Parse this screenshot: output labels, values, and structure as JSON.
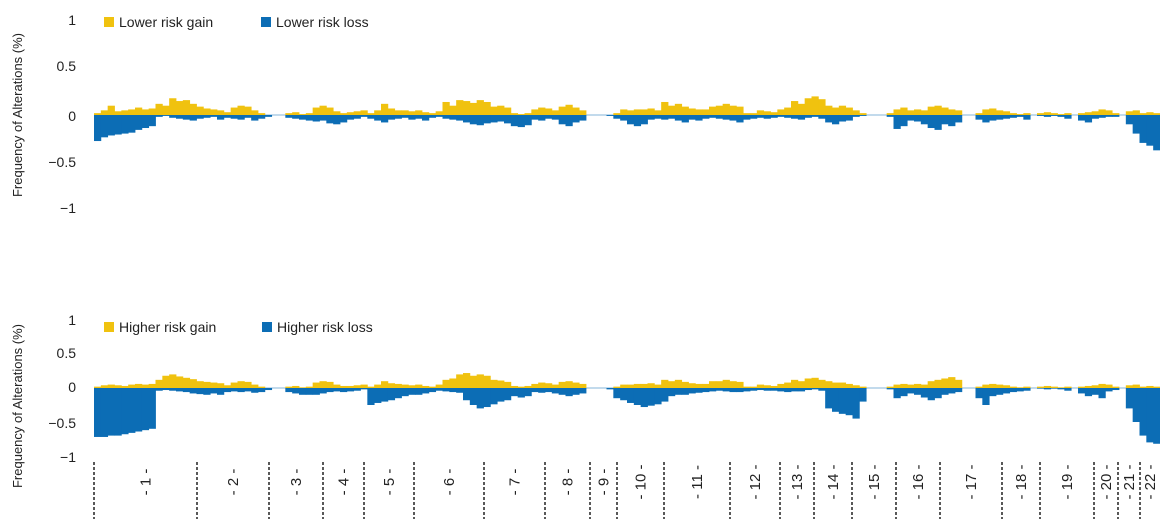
{
  "colors": {
    "gain": "#f0c20f",
    "loss": "#0c6db5",
    "separator": "#222222"
  },
  "chart_data": [
    {
      "type": "area",
      "ylabel": "Frequency of Alterations (%)",
      "ylim": [
        -1,
        1
      ],
      "yticks": [
        1,
        0.5,
        0,
        -0.5,
        -1
      ],
      "ytick_labels": [
        "1",
        "0.5",
        "0",
        "−0.5",
        "−1"
      ],
      "legend": [
        "Lower risk gain",
        "Lower risk loss"
      ],
      "legend_position": "top-left",
      "series": [
        {
          "name": "Lower risk gain",
          "color": "#f0c20f",
          "values": [
            0.02,
            0.05,
            0.1,
            0.04,
            0.05,
            0.06,
            0.08,
            0.06,
            0.07,
            0.12,
            0.1,
            0.18,
            0.15,
            0.16,
            0.12,
            0.09,
            0.07,
            0.06,
            0.05,
            0.03,
            0.08,
            0.1,
            0.09,
            0.05,
            0.02,
            0,
            0,
            0,
            0.02,
            0.03,
            0.01,
            0.02,
            0.08,
            0.1,
            0.08,
            0.04,
            0.02,
            0.03,
            0.04,
            0.05,
            0.02,
            0.05,
            0.12,
            0.07,
            0.05,
            0.05,
            0.04,
            0.05,
            0.03,
            0.02,
            0.04,
            0.14,
            0.1,
            0.16,
            0.15,
            0.13,
            0.16,
            0.14,
            0.09,
            0.1,
            0.08,
            0.02,
            0.01,
            0.02,
            0.06,
            0.08,
            0.07,
            0.05,
            0.09,
            0.11,
            0.08,
            0.05,
            0,
            0,
            0,
            0,
            0.02,
            0.06,
            0.05,
            0.06,
            0.06,
            0.07,
            0.05,
            0.14,
            0.1,
            0.12,
            0.09,
            0.07,
            0.06,
            0.06,
            0.09,
            0.1,
            0.12,
            0.1,
            0.09,
            0.02,
            0.02,
            0.05,
            0.04,
            0.03,
            0.06,
            0.08,
            0.15,
            0.12,
            0.18,
            0.2,
            0.17,
            0.1,
            0.08,
            0.1,
            0.08,
            0.05,
            0.02,
            0,
            0,
            0,
            0.02,
            0.06,
            0.08,
            0.05,
            0.06,
            0.05,
            0.09,
            0.1,
            0.08,
            0.06,
            0.05,
            0,
            0,
            0.02,
            0.06,
            0.07,
            0.05,
            0.04,
            0.02,
            0.01,
            0.02,
            0,
            0.02,
            0.03,
            0.02,
            0.01,
            0.02,
            0,
            0.02,
            0.03,
            0.04,
            0.06,
            0.05,
            0.02,
            0,
            0.04,
            0.05,
            0.02,
            0.03,
            0.02
          ]
        },
        {
          "name": "Lower risk loss",
          "color": "#0c6db5",
          "values": [
            -0.28,
            -0.24,
            -0.22,
            -0.21,
            -0.2,
            -0.19,
            -0.16,
            -0.14,
            -0.12,
            -0.02,
            -0.01,
            -0.03,
            -0.04,
            -0.05,
            -0.06,
            -0.04,
            -0.03,
            -0.02,
            -0.05,
            -0.03,
            -0.04,
            -0.05,
            -0.03,
            -0.06,
            -0.04,
            -0.02,
            0,
            0,
            -0.03,
            -0.04,
            -0.05,
            -0.06,
            -0.07,
            -0.06,
            -0.09,
            -0.1,
            -0.08,
            -0.05,
            -0.04,
            -0.02,
            -0.04,
            -0.06,
            -0.08,
            -0.05,
            -0.04,
            -0.03,
            -0.05,
            -0.04,
            -0.06,
            -0.03,
            -0.02,
            -0.04,
            -0.05,
            -0.06,
            -0.08,
            -0.1,
            -0.11,
            -0.09,
            -0.08,
            -0.07,
            -0.09,
            -0.12,
            -0.13,
            -0.11,
            -0.05,
            -0.06,
            -0.04,
            -0.05,
            -0.1,
            -0.12,
            -0.08,
            -0.06,
            0,
            0,
            0,
            -0.01,
            -0.04,
            -0.06,
            -0.1,
            -0.12,
            -0.1,
            -0.05,
            -0.04,
            -0.05,
            -0.04,
            -0.06,
            -0.08,
            -0.05,
            -0.06,
            -0.04,
            -0.03,
            -0.04,
            -0.05,
            -0.06,
            -0.08,
            -0.05,
            -0.04,
            -0.03,
            -0.04,
            -0.03,
            -0.02,
            -0.03,
            -0.04,
            -0.05,
            -0.03,
            -0.02,
            -0.04,
            -0.08,
            -0.1,
            -0.07,
            -0.06,
            -0.02,
            -0.01,
            0,
            0,
            0,
            -0.02,
            -0.15,
            -0.12,
            -0.06,
            -0.07,
            -0.1,
            -0.14,
            -0.16,
            -0.1,
            -0.12,
            -0.08,
            0,
            0,
            -0.05,
            -0.08,
            -0.06,
            -0.05,
            -0.04,
            -0.03,
            -0.02,
            -0.05,
            0,
            -0.01,
            -0.02,
            -0.01,
            -0.02,
            -0.04,
            0,
            -0.06,
            -0.08,
            -0.04,
            -0.03,
            -0.02,
            -0.02,
            0,
            -0.1,
            -0.2,
            -0.3,
            -0.33,
            -0.38
          ]
        }
      ]
    },
    {
      "type": "area",
      "ylabel": "Frequency of Alterations (%)",
      "ylim": [
        -1,
        1
      ],
      "yticks": [
        1,
        0.5,
        0,
        -0.5,
        -1
      ],
      "ytick_labels": [
        "1",
        "0.5",
        "0",
        "−0.5",
        "−1"
      ],
      "legend": [
        "Higher risk gain",
        "Higher risk loss"
      ],
      "legend_position": "top-left",
      "series": [
        {
          "name": "Higher risk gain",
          "color": "#f0c20f",
          "values": [
            0.02,
            0.04,
            0.05,
            0.04,
            0.03,
            0.05,
            0.06,
            0.05,
            0.06,
            0.12,
            0.18,
            0.2,
            0.17,
            0.15,
            0.13,
            0.1,
            0.09,
            0.08,
            0.07,
            0.04,
            0.08,
            0.1,
            0.09,
            0.05,
            0.02,
            0,
            0,
            0,
            0.02,
            0.03,
            0.01,
            0.02,
            0.08,
            0.1,
            0.09,
            0.05,
            0.03,
            0.03,
            0.04,
            0.05,
            0.02,
            0.05,
            0.1,
            0.07,
            0.06,
            0.05,
            0.04,
            0.05,
            0.03,
            0.02,
            0.05,
            0.12,
            0.14,
            0.2,
            0.22,
            0.18,
            0.2,
            0.18,
            0.12,
            0.11,
            0.09,
            0.03,
            0.02,
            0.03,
            0.06,
            0.08,
            0.07,
            0.05,
            0.09,
            0.1,
            0.08,
            0.06,
            0,
            0,
            0,
            0,
            0.02,
            0.05,
            0.05,
            0.06,
            0.06,
            0.07,
            0.05,
            0.12,
            0.1,
            0.12,
            0.09,
            0.07,
            0.06,
            0.06,
            0.1,
            0.1,
            0.12,
            0.1,
            0.09,
            0.02,
            0.02,
            0.05,
            0.04,
            0.03,
            0.06,
            0.08,
            0.12,
            0.1,
            0.14,
            0.15,
            0.12,
            0.1,
            0.08,
            0.08,
            0.06,
            0.04,
            0.02,
            0,
            0,
            0,
            0.02,
            0.05,
            0.06,
            0.05,
            0.06,
            0.05,
            0.1,
            0.12,
            0.14,
            0.16,
            0.12,
            0,
            0,
            0.02,
            0.05,
            0.06,
            0.05,
            0.04,
            0.02,
            0.01,
            0.02,
            0,
            0.02,
            0.03,
            0.02,
            0.01,
            0.02,
            0,
            0.02,
            0.03,
            0.04,
            0.06,
            0.05,
            0.02,
            0,
            0.04,
            0.05,
            0.02,
            0.03,
            0.02
          ]
        },
        {
          "name": "Higher risk loss",
          "color": "#0c6db5",
          "values": [
            -0.72,
            -0.72,
            -0.7,
            -0.7,
            -0.68,
            -0.66,
            -0.64,
            -0.62,
            -0.6,
            -0.04,
            -0.03,
            -0.04,
            -0.05,
            -0.06,
            -0.08,
            -0.09,
            -0.1,
            -0.08,
            -0.1,
            -0.06,
            -0.05,
            -0.06,
            -0.05,
            -0.07,
            -0.06,
            -0.03,
            0,
            0,
            -0.06,
            -0.08,
            -0.1,
            -0.1,
            -0.1,
            -0.08,
            -0.06,
            -0.05,
            -0.06,
            -0.05,
            -0.04,
            -0.02,
            -0.25,
            -0.22,
            -0.2,
            -0.18,
            -0.15,
            -0.12,
            -0.1,
            -0.1,
            -0.08,
            -0.06,
            -0.04,
            -0.05,
            -0.06,
            -0.07,
            -0.18,
            -0.25,
            -0.3,
            -0.28,
            -0.24,
            -0.2,
            -0.18,
            -0.12,
            -0.14,
            -0.12,
            -0.06,
            -0.07,
            -0.06,
            -0.08,
            -0.1,
            -0.12,
            -0.1,
            -0.08,
            0,
            0,
            0,
            -0.02,
            -0.15,
            -0.18,
            -0.22,
            -0.25,
            -0.28,
            -0.26,
            -0.24,
            -0.2,
            -0.12,
            -0.1,
            -0.1,
            -0.08,
            -0.07,
            -0.06,
            -0.05,
            -0.04,
            -0.05,
            -0.06,
            -0.06,
            -0.05,
            -0.04,
            -0.03,
            -0.04,
            -0.04,
            -0.05,
            -0.06,
            -0.05,
            -0.05,
            -0.03,
            -0.02,
            -0.04,
            -0.3,
            -0.35,
            -0.38,
            -0.4,
            -0.45,
            -0.2,
            0,
            0,
            0,
            -0.02,
            -0.15,
            -0.12,
            -0.08,
            -0.1,
            -0.14,
            -0.18,
            -0.15,
            -0.1,
            -0.08,
            -0.06,
            0,
            0,
            -0.15,
            -0.25,
            -0.12,
            -0.1,
            -0.08,
            -0.06,
            -0.05,
            -0.04,
            0,
            -0.01,
            -0.02,
            -0.01,
            -0.02,
            -0.04,
            0,
            -0.08,
            -0.12,
            -0.1,
            -0.15,
            -0.05,
            -0.03,
            0,
            -0.3,
            -0.5,
            -0.7,
            -0.8,
            -0.82
          ]
        }
      ]
    }
  ],
  "chromosomes": [
    "1",
    "2",
    "3",
    "4",
    "5",
    "6",
    "7",
    "8",
    "9",
    "10",
    "11",
    "12",
    "13",
    "14",
    "15",
    "16",
    "17",
    "18",
    "19",
    "20",
    "21",
    "22"
  ]
}
